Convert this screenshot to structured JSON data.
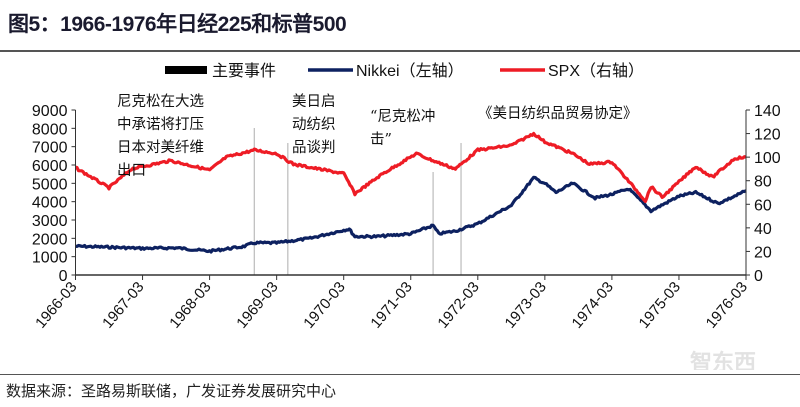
{
  "title": "图5：1966-1976年日经225和标普500",
  "footer": "数据来源：圣路易斯联储，广发证券发展研究中心",
  "watermark": "智东西",
  "chart_data": {
    "type": "line",
    "title": "图5：1966-1976年日经225和标普500",
    "legend": {
      "position": "top",
      "entries": [
        "主要事件",
        "Nikkei（左轴）",
        "SPX（右轴）"
      ]
    },
    "x_ticks": [
      "1966-03",
      "1967-03",
      "1968-03",
      "1969-03",
      "1970-03",
      "1971-03",
      "1972-03",
      "1973-03",
      "1974-03",
      "1975-03",
      "1976-03"
    ],
    "xlim": [
      "1966-03",
      "1976-03"
    ],
    "y_left": {
      "lim": [
        0,
        9000
      ],
      "ticks": [
        0,
        1000,
        2000,
        3000,
        4000,
        5000,
        6000,
        7000,
        8000,
        9000
      ]
    },
    "y_right": {
      "lim": [
        0,
        140
      ],
      "ticks": [
        0,
        20,
        40,
        60,
        80,
        100,
        120,
        140
      ]
    },
    "grid": false,
    "series": [
      {
        "name": "Nikkei（左轴）",
        "axis": "left",
        "color": "#0d2160",
        "points": [
          [
            "1966-03",
            1570
          ],
          [
            "1966-09",
            1520
          ],
          [
            "1967-03",
            1450
          ],
          [
            "1967-09",
            1480
          ],
          [
            "1968-03",
            1300
          ],
          [
            "1968-09",
            1550
          ],
          [
            "1968-11",
            1750
          ],
          [
            "1969-03",
            1750
          ],
          [
            "1969-09",
            2000
          ],
          [
            "1970-03",
            2450
          ],
          [
            "1970-04",
            2500
          ],
          [
            "1970-05",
            2100
          ],
          [
            "1970-09",
            2100
          ],
          [
            "1971-03",
            2250
          ],
          [
            "1971-07",
            2700
          ],
          [
            "1971-08",
            2250
          ],
          [
            "1971-11",
            2400
          ],
          [
            "1972-03",
            2800
          ],
          [
            "1972-09",
            3800
          ],
          [
            "1973-01",
            5300
          ],
          [
            "1973-03",
            5000
          ],
          [
            "1973-05",
            4500
          ],
          [
            "1973-08",
            5000
          ],
          [
            "1973-12",
            4200
          ],
          [
            "1974-03",
            4400
          ],
          [
            "1974-06",
            4700
          ],
          [
            "1974-10",
            3500
          ],
          [
            "1975-03",
            4300
          ],
          [
            "1975-06",
            4500
          ],
          [
            "1975-10",
            3900
          ],
          [
            "1976-01",
            4300
          ],
          [
            "1976-03",
            4600
          ]
        ]
      },
      {
        "name": "SPX（右轴）",
        "axis": "right",
        "color": "#ee1c25",
        "points": [
          [
            "1966-03",
            91
          ],
          [
            "1966-09",
            74
          ],
          [
            "1967-01",
            90
          ],
          [
            "1967-08",
            97
          ],
          [
            "1968-03",
            89
          ],
          [
            "1968-06",
            100
          ],
          [
            "1968-11",
            106
          ],
          [
            "1969-03",
            103
          ],
          [
            "1969-06",
            94
          ],
          [
            "1970-03",
            86
          ],
          [
            "1970-05",
            69
          ],
          [
            "1970-10",
            86
          ],
          [
            "1971-04",
            103
          ],
          [
            "1971-07",
            97
          ],
          [
            "1971-11",
            90
          ],
          [
            "1972-03",
            106
          ],
          [
            "1972-09",
            110
          ],
          [
            "1973-01",
            120
          ],
          [
            "1973-03",
            113
          ],
          [
            "1973-08",
            103
          ],
          [
            "1973-11",
            94
          ],
          [
            "1974-03",
            96
          ],
          [
            "1974-09",
            63
          ],
          [
            "1974-10",
            75
          ],
          [
            "1974-12",
            66
          ],
          [
            "1975-06",
            92
          ],
          [
            "1975-09",
            83
          ],
          [
            "1976-01",
            99
          ],
          [
            "1976-03",
            100
          ]
        ]
      }
    ],
    "events": [
      {
        "date": "1968-11",
        "label": [
          "尼克松在大选",
          "中承诺将打压",
          "日本对美纤维",
          "出口"
        ]
      },
      {
        "date": "1969-05",
        "label": [
          "美日启",
          "动纺织",
          "品谈判"
        ]
      },
      {
        "date": "1971-07",
        "label": [
          "“尼克松冲",
          "击”"
        ]
      },
      {
        "date": "1971-12",
        "label": [
          "《美日纺织品贸易协定》"
        ]
      }
    ],
    "event_color": "#bbbbbb"
  }
}
